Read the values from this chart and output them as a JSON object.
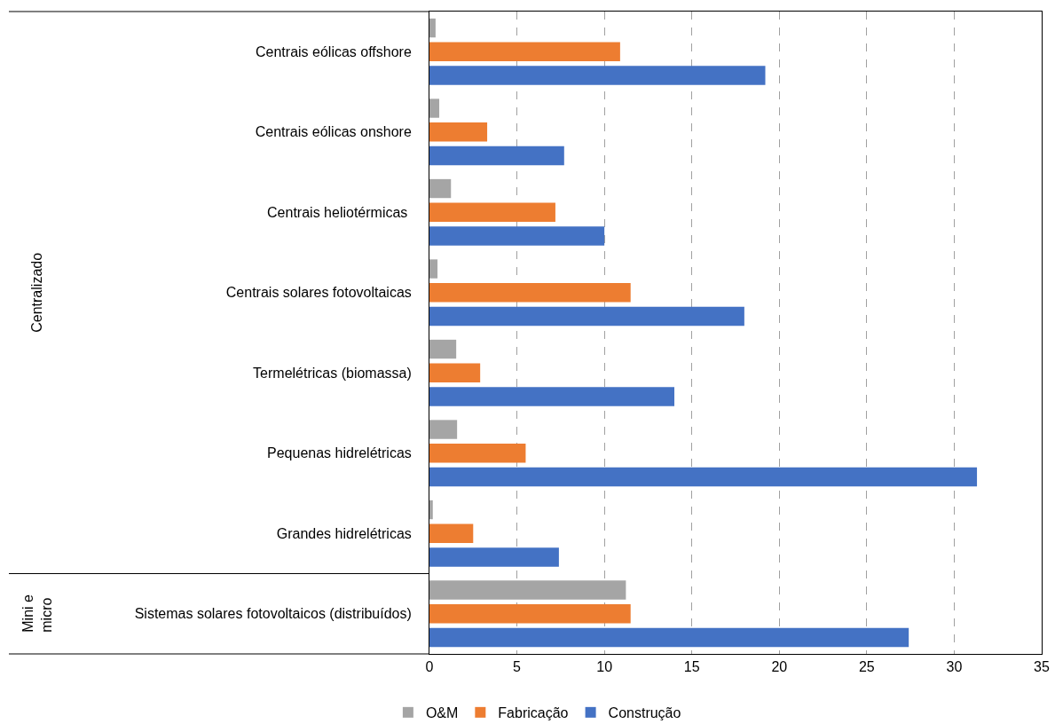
{
  "chart_data": {
    "type": "bar",
    "orientation": "horizontal",
    "categories": [
      "Centrais eólicas offshore",
      "Centrais eólicas onshore",
      "Centrais heliotérmicas ",
      "Centrais solares fotovoltaicas",
      "Termelétricas (biomassa)",
      "Pequenas hidrelétricas",
      "Grandes hidrelétricas",
      "Sistemas solares fotovoltaicos (distribuídos)"
    ],
    "series": [
      {
        "name": "O&M",
        "color": "#a5a5a5",
        "values": [
          0.35,
          0.56,
          1.23,
          0.46,
          1.53,
          1.58,
          0.19,
          11.23
        ]
      },
      {
        "name": "Fabricação",
        "color": "#ed7d31",
        "values": [
          10.9,
          3.3,
          7.2,
          11.5,
          2.9,
          5.5,
          2.5,
          11.5
        ]
      },
      {
        "name": "Construção",
        "color": "#4472c4",
        "values": [
          19.2,
          7.7,
          10.0,
          18.0,
          14.0,
          31.3,
          7.4,
          27.4
        ]
      }
    ],
    "xlim": [
      0,
      35
    ],
    "xticks": [
      0,
      5,
      10,
      15,
      20,
      25,
      30,
      35
    ],
    "grid": "x",
    "legend": "bottom",
    "annotations": [
      "Centralizado",
      "Mini e\nmicro"
    ]
  }
}
